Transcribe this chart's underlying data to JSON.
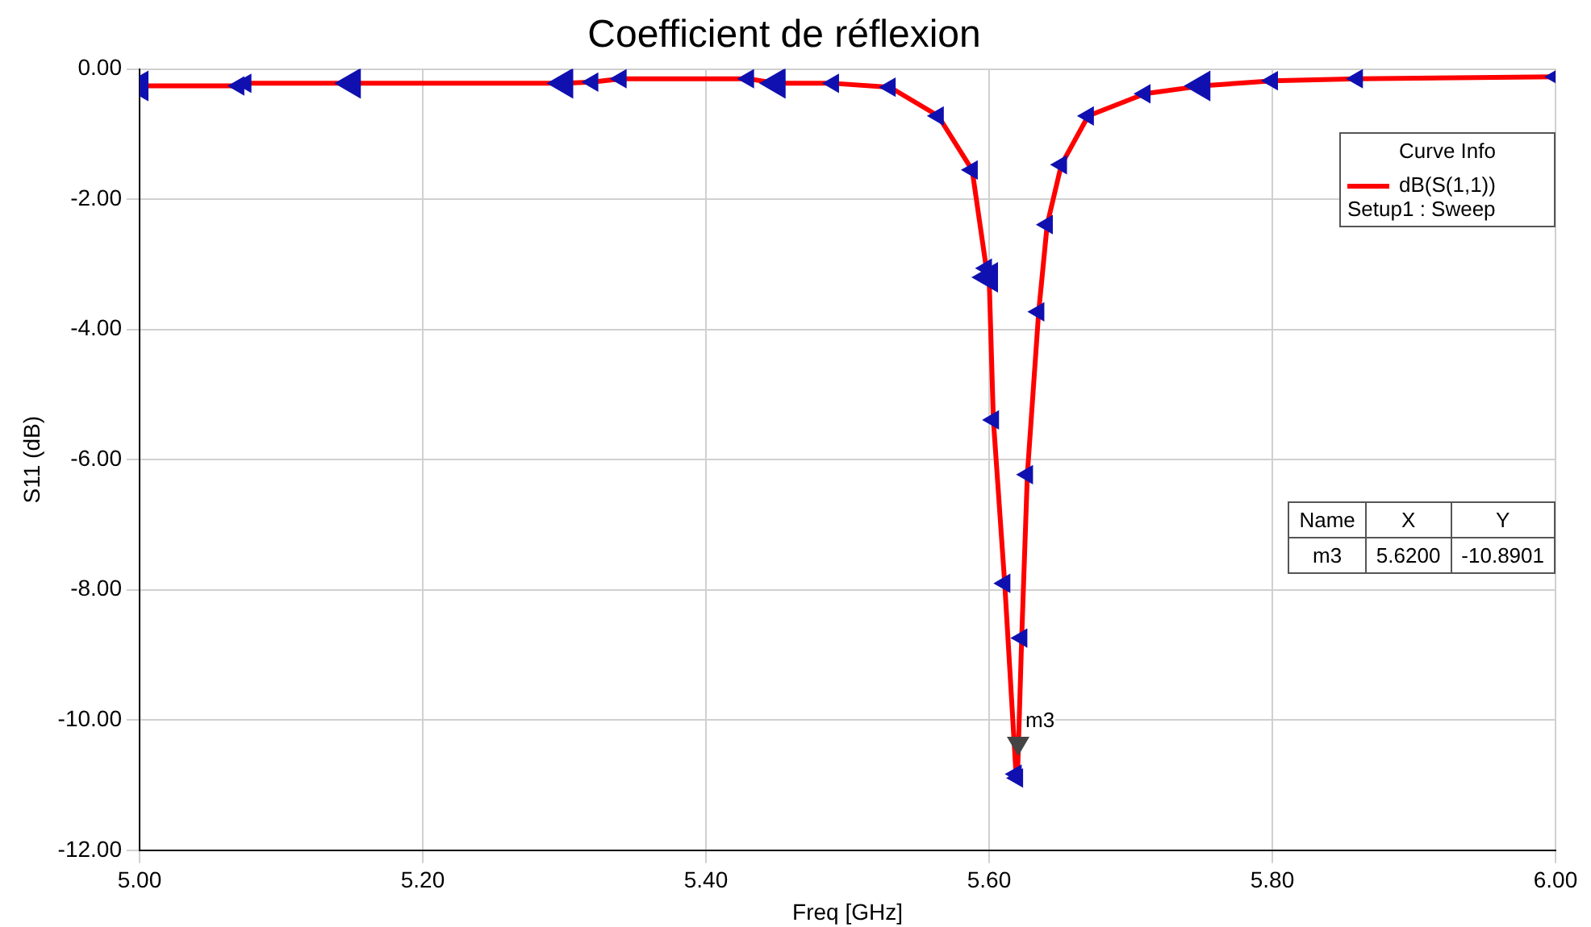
{
  "chart_data": {
    "type": "line",
    "title": "Coefficient de réflexion",
    "xlabel": "Freq [GHz]",
    "ylabel": "S11 (dB)",
    "legend_title": "Curve Info",
    "series": [
      {
        "name": "dB(S(1,1)) Setup1 : Sweep",
        "color": "#ff0000",
        "x": [
          5.0,
          5.07,
          5.075,
          5.15,
          5.3,
          5.32,
          5.34,
          5.43,
          5.45,
          5.49,
          5.53,
          5.564,
          5.588,
          5.598,
          5.6,
          5.603,
          5.611,
          5.619,
          5.62,
          5.623,
          5.627,
          5.635,
          5.641,
          5.651,
          5.67,
          5.71,
          5.75,
          5.8,
          5.86,
          6.0
        ],
        "values": [
          -0.26,
          -0.26,
          -0.22,
          -0.22,
          -0.22,
          -0.2,
          -0.15,
          -0.15,
          -0.22,
          -0.22,
          -0.28,
          -0.72,
          -1.55,
          -3.06,
          -3.2,
          -5.39,
          -7.9,
          -10.83,
          -10.89,
          -8.74,
          -6.23,
          -3.73,
          -2.39,
          -1.47,
          -0.72,
          -0.38,
          -0.26,
          -0.18,
          -0.15,
          -0.12
        ]
      }
    ],
    "xlim": [
      5.0,
      6.0
    ],
    "xticks": [
      {
        "value": 5.0,
        "label": "5.00"
      },
      {
        "value": 5.2,
        "label": "5.20"
      },
      {
        "value": 5.4,
        "label": "5.40"
      },
      {
        "value": 5.6,
        "label": "5.60"
      },
      {
        "value": 5.8,
        "label": "5.80"
      },
      {
        "value": 6.0,
        "label": "6.00"
      }
    ],
    "ylim": [
      -12,
      0
    ],
    "yticks": [
      {
        "value": 0,
        "label": "0.00"
      },
      {
        "value": -2,
        "label": "-2.00"
      },
      {
        "value": -4,
        "label": "-4.00"
      },
      {
        "value": -6,
        "label": "-6.00"
      },
      {
        "value": -8,
        "label": "-8.00"
      },
      {
        "value": -10,
        "label": "-10.00"
      },
      {
        "value": -12,
        "label": "-12.00"
      }
    ],
    "grid": true,
    "legend": "top right",
    "marker": "triangle",
    "line_style": "solid",
    "annotations": [
      {
        "text": "m3",
        "x": 5.62,
        "y": -10.89
      },
      "Name",
      "X",
      "Y",
      "m3",
      "5.6200",
      "-10.8901"
    ]
  }
}
